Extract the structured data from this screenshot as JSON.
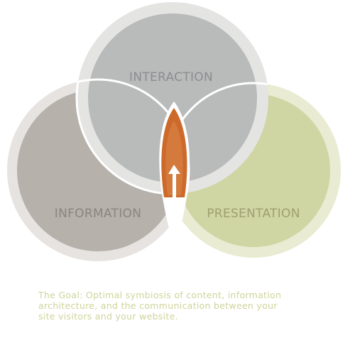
{
  "diagram": {
    "circles": {
      "interaction": {
        "label": "INTERACTION",
        "ring_color": "#e4e5e3",
        "fill_color": "#b9bbbb",
        "label_color": "#8a8e8e"
      },
      "information": {
        "label": "INFORMATION",
        "ring_color": "#e6e3e0",
        "fill_color": "#b6b1ab",
        "label_color": "#8a8580"
      },
      "presentation": {
        "label": "PRESENTATION",
        "ring_color": "#e9ecd2",
        "fill_color": "#d0d5a4",
        "label_color": "#9da070"
      }
    },
    "center_flame": {
      "outer_color": "#cd6a2b",
      "inner_color": "#d37a3c",
      "arrow_color": "#ffffff"
    }
  },
  "caption": {
    "line1": "The Goal: Optimal symbiosis of content, information",
    "line2": "architecture, and the communication between your",
    "line3": "site visitors and your website."
  }
}
